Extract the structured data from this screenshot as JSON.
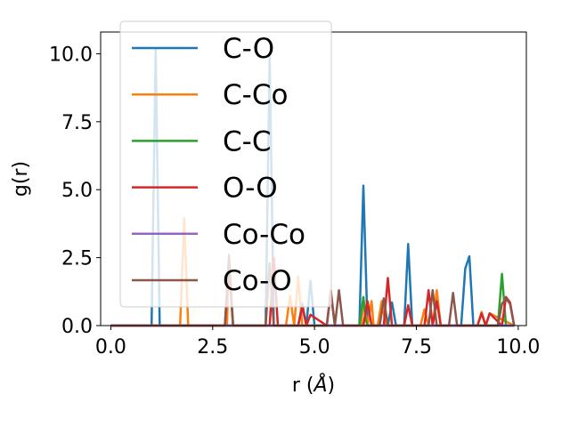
{
  "chart_data": {
    "type": "line",
    "title": "",
    "xlabel": "r (",
    "xlabel_unit": "Å",
    "xlabel_close": ")",
    "ylabel": "g(r)",
    "xlim": [
      -0.25,
      10.2
    ],
    "ylim": [
      0,
      10.8
    ],
    "xticks": [
      0.0,
      2.5,
      5.0,
      7.5,
      10.0
    ],
    "xtick_labels": [
      "0.0",
      "2.5",
      "5.0",
      "7.5",
      "10.0"
    ],
    "yticks": [
      0.0,
      2.5,
      5.0,
      7.5,
      10.0
    ],
    "ytick_labels": [
      "0.0",
      "2.5",
      "5.0",
      "7.5",
      "10.0"
    ],
    "grid": false,
    "legend_position": "top-left",
    "series": [
      {
        "name": "C-O",
        "color": "#1f77b4",
        "x": [
          0.0,
          1.0,
          1.1,
          1.2,
          3.8,
          3.9,
          4.0,
          4.6,
          4.7,
          4.8,
          4.9,
          5.0,
          6.1,
          6.2,
          6.3,
          6.8,
          6.9,
          7.0,
          7.2,
          7.3,
          7.4,
          8.6,
          8.7,
          8.8,
          8.9,
          9.9
        ],
        "y": [
          0.0,
          0.0,
          10.2,
          0.0,
          0.0,
          9.9,
          0.0,
          0.0,
          0.8,
          0.0,
          1.65,
          0.0,
          0.0,
          5.15,
          0.0,
          0.0,
          0.85,
          0.0,
          0.0,
          3.0,
          0.0,
          0.0,
          2.1,
          2.55,
          0.0,
          0.0
        ]
      },
      {
        "name": "C-Co",
        "color": "#ff7f0e",
        "x": [
          0.0,
          1.7,
          1.8,
          1.9,
          2.85,
          2.9,
          3.0,
          4.3,
          4.4,
          4.5,
          4.6,
          4.7,
          4.8,
          6.15,
          6.2,
          6.3,
          6.4,
          6.45,
          6.55,
          6.65,
          6.75,
          7.6,
          7.7,
          7.8,
          7.9,
          8.0,
          8.1,
          9.0,
          9.1,
          9.2,
          9.3,
          9.9
        ],
        "y": [
          0.0,
          0.0,
          3.95,
          0.0,
          0.0,
          2.3,
          0.0,
          0.0,
          1.1,
          0.0,
          1.8,
          0.0,
          0.0,
          0.0,
          1.0,
          0.0,
          0.9,
          0.0,
          0.0,
          0.9,
          0.0,
          0.0,
          0.6,
          0.0,
          0.0,
          1.3,
          0.0,
          0.0,
          0.5,
          0.0,
          0.45,
          0.0
        ]
      },
      {
        "name": "C-C",
        "color": "#2ca02c",
        "x": [
          0.0,
          6.0,
          6.1,
          6.2,
          6.25,
          6.3,
          9.5,
          9.6,
          9.7,
          9.9
        ],
        "y": [
          0.0,
          0.0,
          0.0,
          1.05,
          0.3,
          0.0,
          0.0,
          1.9,
          0.0,
          0.0
        ]
      },
      {
        "name": "O-O",
        "color": "#d62728",
        "x": [
          0.0,
          2.8,
          2.9,
          3.0,
          3.9,
          4.0,
          4.1,
          4.6,
          4.7,
          4.8,
          4.9,
          5.3,
          5.4,
          5.5,
          6.2,
          6.3,
          6.4,
          6.7,
          6.8,
          6.9,
          7.2,
          7.3,
          7.4,
          7.7,
          7.8,
          7.9,
          8.0,
          8.1,
          9.0,
          9.1,
          9.2,
          9.3,
          9.6,
          9.7,
          9.8,
          9.9
        ],
        "y": [
          0.0,
          0.0,
          2.2,
          0.0,
          0.0,
          2.5,
          0.0,
          0.0,
          0.7,
          0.0,
          0.4,
          0.0,
          1.3,
          0.0,
          0.0,
          0.9,
          0.0,
          0.0,
          1.75,
          0.0,
          0.0,
          0.75,
          0.0,
          0.0,
          1.3,
          0.0,
          0.9,
          0.0,
          0.0,
          0.45,
          0.0,
          0.45,
          0.0,
          1.05,
          0.85,
          0.0
        ]
      },
      {
        "name": "Co-Co",
        "color": "#9467bd",
        "x": [
          0.0,
          9.9
        ],
        "y": [
          0.0,
          0.0
        ]
      },
      {
        "name": "Co-O",
        "color": "#8c564b",
        "x": [
          0.0,
          2.8,
          2.9,
          3.0,
          3.8,
          3.9,
          4.0,
          5.3,
          5.4,
          5.5,
          5.6,
          5.7,
          6.6,
          6.7,
          6.8,
          7.8,
          7.9,
          8.0,
          8.3,
          8.4,
          8.5,
          9.5,
          9.6,
          9.7,
          9.8,
          9.9
        ],
        "y": [
          0.0,
          0.0,
          2.6,
          0.0,
          0.0,
          2.3,
          0.0,
          0.0,
          1.2,
          0.0,
          1.3,
          0.0,
          0.0,
          1.0,
          0.0,
          0.0,
          1.3,
          0.0,
          0.0,
          1.2,
          0.0,
          0.0,
          0.8,
          1.0,
          0.8,
          0.0
        ]
      }
    ]
  }
}
